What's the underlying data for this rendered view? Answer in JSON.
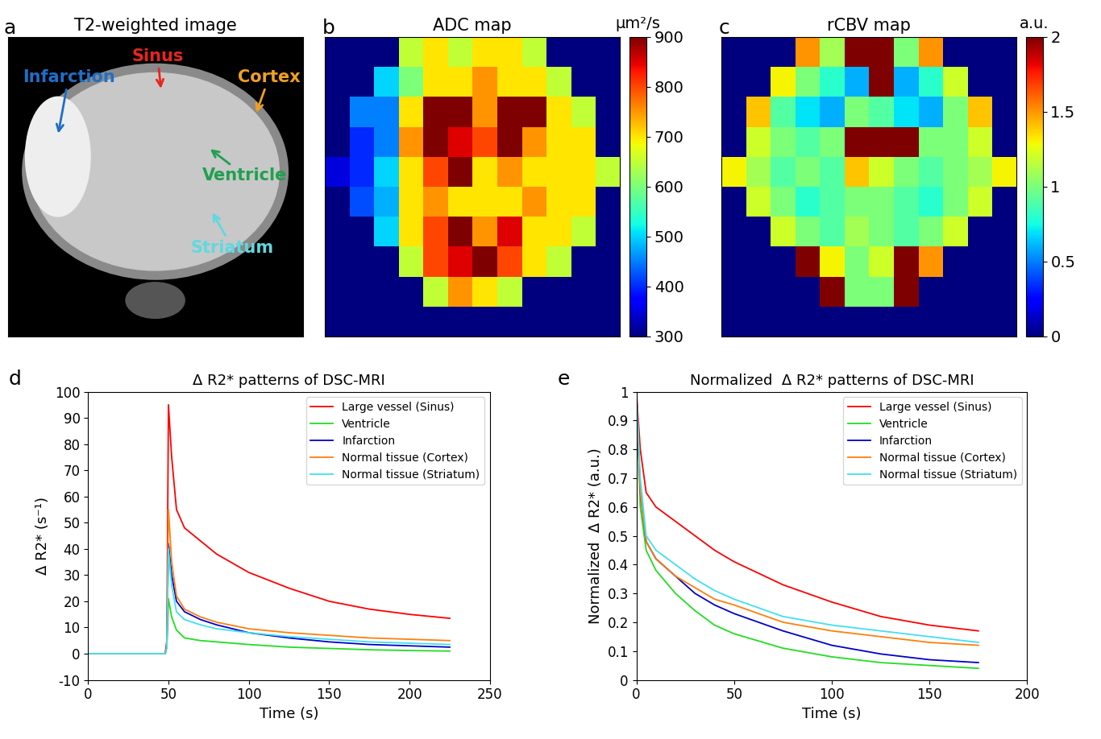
{
  "chart_data": [
    {
      "type": "image",
      "panel": "a",
      "title": "T2-weighted image",
      "tick_labels": false,
      "annotations": [
        {
          "text": "Infarction",
          "color": "#1e6fc8"
        },
        {
          "text": "Sinus",
          "color": "#e8261e"
        },
        {
          "text": "Cortex",
          "color": "#f0a020"
        },
        {
          "text": "Ventricle",
          "color": "#20a050"
        },
        {
          "text": "Striatum",
          "color": "#60d8e0"
        }
      ]
    },
    {
      "type": "heatmap",
      "panel": "b",
      "title": "ADC map",
      "tick_labels": false,
      "colorbar": {
        "label": "µm²/s",
        "range": [
          300,
          900
        ],
        "ticks": [
          300,
          400,
          500,
          600,
          700,
          800,
          900
        ]
      },
      "cells": [
        [
          300,
          300,
          300,
          650,
          700,
          650,
          700,
          700,
          650,
          300,
          300,
          300
        ],
        [
          300,
          300,
          500,
          600,
          700,
          700,
          750,
          700,
          700,
          650,
          300,
          300
        ],
        [
          300,
          450,
          450,
          700,
          900,
          900,
          750,
          900,
          900,
          700,
          650,
          300
        ],
        [
          300,
          400,
          450,
          750,
          900,
          850,
          800,
          900,
          750,
          700,
          700,
          300
        ],
        [
          350,
          400,
          500,
          700,
          800,
          900,
          700,
          750,
          700,
          700,
          700,
          650
        ],
        [
          300,
          420,
          480,
          700,
          750,
          700,
          700,
          700,
          750,
          700,
          700,
          300
        ],
        [
          300,
          300,
          500,
          700,
          800,
          900,
          750,
          850,
          700,
          700,
          650,
          300
        ],
        [
          300,
          300,
          300,
          650,
          800,
          850,
          900,
          800,
          700,
          650,
          300,
          300
        ],
        [
          300,
          300,
          300,
          300,
          650,
          750,
          700,
          650,
          300,
          300,
          300,
          300
        ],
        [
          300,
          300,
          300,
          300,
          300,
          300,
          300,
          300,
          300,
          300,
          300,
          300
        ]
      ]
    },
    {
      "type": "heatmap",
      "panel": "c",
      "title": "rCBV map",
      "tick_labels": false,
      "colorbar": {
        "label": "a.u.",
        "range": [
          0,
          2
        ],
        "ticks": [
          0,
          0.5,
          1,
          1.5,
          2
        ]
      },
      "cells": [
        [
          0,
          0,
          0,
          1.5,
          1.1,
          2,
          2,
          1,
          1.5,
          0,
          0,
          0
        ],
        [
          0,
          0,
          1.3,
          1,
          0.8,
          0.6,
          2,
          0.6,
          0.8,
          1.2,
          0,
          0
        ],
        [
          0,
          1.4,
          0.9,
          0.7,
          0.6,
          1,
          0.9,
          0.7,
          0.6,
          1,
          1.4,
          0
        ],
        [
          0,
          1.2,
          1,
          0.9,
          1,
          2,
          2,
          2,
          1,
          1,
          1.2,
          0
        ],
        [
          1.3,
          1.1,
          0.9,
          1,
          0.9,
          1.4,
          1.2,
          1,
          0.9,
          1,
          1.1,
          1.3
        ],
        [
          0,
          1.2,
          1,
          0.8,
          0.9,
          1,
          1,
          0.9,
          0.8,
          1,
          1.2,
          0
        ],
        [
          0,
          0,
          1.2,
          1,
          0.9,
          1.1,
          1,
          0.9,
          1,
          1.2,
          0,
          0
        ],
        [
          0,
          0,
          0,
          2,
          1.3,
          1,
          1.2,
          2,
          1.5,
          0,
          0,
          0
        ],
        [
          0,
          0,
          0,
          0,
          2,
          1,
          1,
          2,
          0,
          0,
          0,
          0
        ],
        [
          0,
          0,
          0,
          0,
          0,
          0,
          0,
          0,
          0,
          0,
          0,
          0
        ]
      ]
    },
    {
      "type": "line",
      "panel": "d",
      "title": "Δ R2* patterns of DSC-MRI",
      "x_label": "Time (s)",
      "y_label": "Δ R2* (s⁻¹)",
      "x": [
        0,
        10,
        20,
        30,
        40,
        48,
        49,
        50,
        52,
        55,
        60,
        70,
        80,
        100,
        125,
        150,
        175,
        200,
        225
      ],
      "xlim": [
        0,
        250
      ],
      "xticks": [
        0,
        50,
        100,
        150,
        200,
        250
      ],
      "ylim": [
        -10,
        100
      ],
      "yticks": [
        -10,
        0,
        10,
        20,
        30,
        40,
        50,
        60,
        70,
        80,
        90,
        100
      ],
      "legend": "upper right",
      "series": [
        {
          "name": "Large vessel (Sinus)",
          "color": "#ff0000",
          "values": [
            0,
            0,
            0,
            0,
            0,
            0,
            5,
            95,
            75,
            55,
            48,
            43,
            38,
            31,
            25,
            20,
            17,
            15,
            13.5
          ]
        },
        {
          "name": "Ventricle",
          "color": "#22dd22",
          "values": [
            0,
            0,
            0,
            0,
            0,
            0,
            3,
            21,
            14,
            9,
            6,
            5,
            4.5,
            3.5,
            2.5,
            2,
            1.5,
            1.2,
            1
          ]
        },
        {
          "name": "Infarction",
          "color": "#0000cc",
          "values": [
            0,
            0,
            0,
            0,
            0,
            0,
            3,
            42,
            30,
            20,
            16,
            13,
            11,
            8,
            6,
            4.5,
            3.5,
            3,
            2.5
          ]
        },
        {
          "name": "Normal tissue (Cortex)",
          "color": "#ff7f0e",
          "values": [
            0,
            0,
            0,
            0,
            0,
            0,
            3,
            55,
            35,
            22,
            17,
            14,
            12,
            9.5,
            8,
            7,
            6,
            5.5,
            5
          ]
        },
        {
          "name": "Normal tissue (Striatum)",
          "color": "#40e0f0",
          "values": [
            0,
            0,
            0,
            0,
            0,
            0,
            2,
            40,
            26,
            16,
            13,
            11,
            9.5,
            8,
            6.5,
            5.5,
            4.5,
            4,
            3.5
          ]
        }
      ]
    },
    {
      "type": "line",
      "panel": "e",
      "title": "Normalized  Δ R2* patterns of DSC-MRI",
      "x_label": "Time (s)",
      "y_label": "Normalized  Δ R2* (a.u.)",
      "x": [
        0,
        2,
        5,
        10,
        20,
        30,
        40,
        50,
        75,
        100,
        125,
        150,
        175
      ],
      "xlim": [
        0,
        200
      ],
      "xticks": [
        0,
        50,
        100,
        150,
        200
      ],
      "ylim": [
        0,
        1
      ],
      "yticks": [
        0,
        0.1,
        0.2,
        0.3,
        0.4,
        0.5,
        0.6,
        0.7,
        0.8,
        0.9,
        1
      ],
      "legend": "upper right",
      "series": [
        {
          "name": "Large vessel (Sinus)",
          "color": "#ff0000",
          "values": [
            1,
            0.8,
            0.65,
            0.6,
            0.55,
            0.5,
            0.45,
            0.41,
            0.33,
            0.27,
            0.22,
            0.19,
            0.17
          ]
        },
        {
          "name": "Ventricle",
          "color": "#22dd22",
          "values": [
            1,
            0.6,
            0.45,
            0.38,
            0.3,
            0.24,
            0.19,
            0.16,
            0.11,
            0.08,
            0.06,
            0.05,
            0.04
          ]
        },
        {
          "name": "Infarction",
          "color": "#0000cc",
          "values": [
            1,
            0.65,
            0.48,
            0.42,
            0.36,
            0.3,
            0.26,
            0.23,
            0.17,
            0.12,
            0.09,
            0.07,
            0.06
          ]
        },
        {
          "name": "Normal tissue (Cortex)",
          "color": "#ff7f0e",
          "values": [
            1,
            0.65,
            0.48,
            0.42,
            0.36,
            0.32,
            0.28,
            0.26,
            0.2,
            0.17,
            0.15,
            0.13,
            0.12
          ]
        },
        {
          "name": "Normal tissue (Striatum)",
          "color": "#40e0f0",
          "values": [
            1,
            0.7,
            0.5,
            0.45,
            0.4,
            0.35,
            0.31,
            0.28,
            0.22,
            0.19,
            0.17,
            0.15,
            0.13
          ]
        }
      ]
    }
  ]
}
